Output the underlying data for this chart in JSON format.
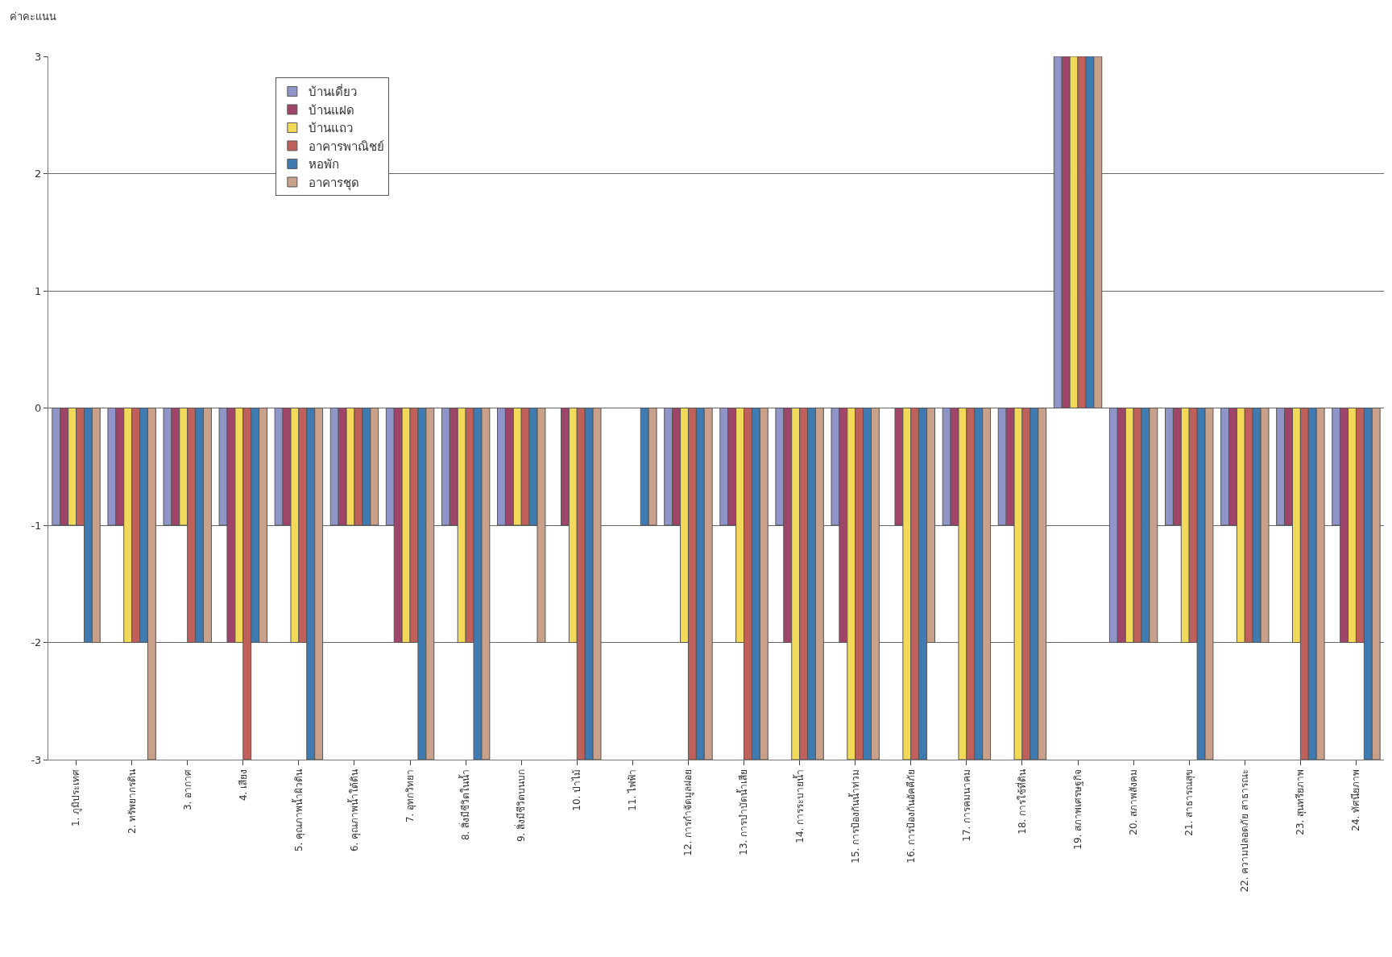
{
  "chart_data": {
    "type": "bar",
    "ylabel": "ค่าคะแนน",
    "categories": [
      "1. ภูมิประเทศ",
      "2. ทรัพยากรดิน",
      "3. อากาศ",
      "4. เสียง",
      "5. คุณภาพน้ำผิวดิน",
      "6. คุณภาพน้ำใต้ดิน",
      "7. อุทกวิทยา",
      "8. สิ่งมีชีวิตในน้ำ",
      "9. สิ่งมีชีวิตบนบก",
      "10. ป่าไม้",
      "11. ไฟฟ้า",
      "12. การกำจัดมูลฝอย",
      "13. การบำบัดน้ำเสีย",
      "14. การระบายน้ำ",
      "15. การป้องกันน้ำท่วม",
      "16. การป้องกันอัคคีภัย",
      "17. การคมนาคม",
      "18. การใช้ที่ดิน",
      "19. สภาพเศรษฐกิจ",
      "20. สภาพสังคม",
      "21. สาธารณสุข",
      "22. ความปลอดภัย สาธารณะ",
      "23. สุนทรียภาพ",
      "24. ทัศนียภาพ"
    ],
    "series": [
      {
        "name": "บ้านเดี่ยว",
        "color": "#8f95c8",
        "values": [
          -1,
          -1,
          -1,
          -1,
          -1,
          -1,
          -1,
          -1,
          -1,
          0,
          0,
          -1,
          -1,
          -1,
          -1,
          0,
          -1,
          -1,
          3,
          -2,
          -1,
          -1,
          -1,
          -1
        ]
      },
      {
        "name": "บ้านแฝด",
        "color": "#a0456a",
        "values": [
          -1,
          -1,
          -1,
          -2,
          -1,
          -1,
          -2,
          -1,
          -1,
          -1,
          0,
          -1,
          -1,
          -2,
          -2,
          -1,
          -1,
          -1,
          3,
          -2,
          -1,
          -1,
          -1,
          -2
        ]
      },
      {
        "name": "บ้านแถว",
        "color": "#f2d95a",
        "values": [
          -1,
          -2,
          -1,
          -2,
          -2,
          -1,
          -2,
          -2,
          -1,
          -2,
          0,
          -2,
          -2,
          -3,
          -3,
          -3,
          -3,
          -3,
          3,
          -2,
          -2,
          -2,
          -2,
          -2
        ]
      },
      {
        "name": "อาคารพาณิชย์",
        "color": "#c0605a",
        "values": [
          -1,
          -2,
          -2,
          -3,
          -2,
          -1,
          -2,
          -2,
          -1,
          -3,
          0,
          -3,
          -3,
          -3,
          -3,
          -3,
          -3,
          -3,
          3,
          -2,
          -2,
          -2,
          -3,
          -2
        ]
      },
      {
        "name": "หอพัก",
        "color": "#3f7ab0",
        "values": [
          -2,
          -2,
          -2,
          -2,
          -3,
          -1,
          -3,
          -3,
          -1,
          -3,
          -1,
          -3,
          -3,
          -3,
          -3,
          -3,
          -3,
          -3,
          3,
          -2,
          -3,
          -2,
          -3,
          -3
        ]
      },
      {
        "name": "อาคารชุด",
        "color": "#c9a08a",
        "values": [
          -2,
          -3,
          -2,
          -2,
          -3,
          -1,
          -3,
          -3,
          -2,
          -3,
          -1,
          -3,
          -3,
          -3,
          -3,
          -2,
          -3,
          -3,
          3,
          -2,
          -3,
          -2,
          -3,
          -3
        ]
      }
    ],
    "ylim": [
      -3,
      3
    ],
    "yticks": [
      -3,
      -2,
      -1,
      0,
      1,
      2,
      3
    ],
    "grid": "y",
    "legend": "top left"
  }
}
